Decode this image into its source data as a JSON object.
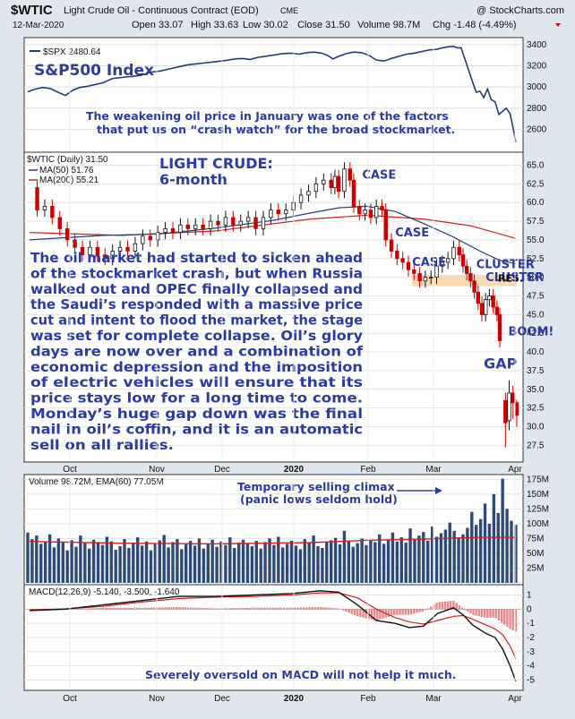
{
  "header": {
    "symbol": "$WTIC",
    "name": "Light Crude Oil - Continuous Contract (EOD)",
    "exchange": "CME",
    "copyright": "@ StockCharts.com",
    "date": "12-Mar-2020",
    "open": "Open 33.07",
    "high": "High 33.63",
    "low": "Low 30.02",
    "close": "Close 31.50",
    "volume": "Volume 98.7M",
    "change": "Chg -1.48 (-4.49%)"
  },
  "colors": {
    "frame_bg": "#dfe6ee",
    "panel_bg": "#ffffff",
    "price_line": "#243b7a",
    "up_candle": "#111111",
    "down_candle": "#cc0000",
    "ma50": "#243b7a",
    "ma200": "#cc2222",
    "annotation": "#2b3ba0",
    "resistance_band": "#f8d9b4",
    "volume_bar": "#2d4a78",
    "volume_ema": "#cc2222",
    "macd_hist": "#e06060"
  },
  "chart_data": [
    {
      "type": "line",
      "panel": "spx",
      "legend": "$SPX 2480.64",
      "title": "S&P500 Index",
      "annotation": "The weakening oil price in January was one of the factors that put us on “crash watch” for the broad stockmarket.",
      "annotation_lines": [
        "The weakening oil price in January was one of the factors",
        "that put us on “crash watch” for the broad stockmarket."
      ],
      "ylim": [
        2400,
        3450
      ],
      "yticks": [
        2600,
        2800,
        3000,
        3200,
        3400
      ],
      "points": [
        [
          0,
          2955
        ],
        [
          8,
          2980
        ],
        [
          16,
          2995
        ],
        [
          24,
          2985
        ],
        [
          32,
          2950
        ],
        [
          40,
          2920
        ],
        [
          48,
          2970
        ],
        [
          55,
          2995
        ],
        [
          62,
          3005
        ],
        [
          70,
          3020
        ],
        [
          80,
          3040
        ],
        [
          90,
          3080
        ],
        [
          100,
          3090
        ],
        [
          110,
          3100
        ],
        [
          120,
          3110
        ],
        [
          130,
          3140
        ],
        [
          140,
          3150
        ],
        [
          150,
          3170
        ],
        [
          160,
          3190
        ],
        [
          170,
          3210
        ],
        [
          180,
          3220
        ],
        [
          190,
          3230
        ],
        [
          200,
          3240
        ],
        [
          210,
          3250
        ],
        [
          220,
          3265
        ],
        [
          228,
          3270
        ],
        [
          236,
          3260
        ],
        [
          244,
          3280
        ],
        [
          252,
          3290
        ],
        [
          260,
          3300
        ],
        [
          270,
          3315
        ],
        [
          280,
          3320
        ],
        [
          288,
          3310
        ],
        [
          296,
          3325
        ],
        [
          304,
          3330
        ],
        [
          312,
          3320
        ],
        [
          318,
          3300
        ],
        [
          324,
          3265
        ],
        [
          330,
          3290
        ],
        [
          338,
          3315
        ],
        [
          346,
          3330
        ],
        [
          354,
          3325
        ],
        [
          362,
          3300
        ],
        [
          370,
          3255
        ],
        [
          378,
          3245
        ],
        [
          386,
          3270
        ],
        [
          394,
          3290
        ],
        [
          402,
          3310
        ],
        [
          410,
          3320
        ],
        [
          418,
          3335
        ],
        [
          426,
          3350
        ],
        [
          434,
          3355
        ],
        [
          440,
          3370
        ],
        [
          446,
          3380
        ],
        [
          452,
          3385
        ],
        [
          456,
          3370
        ],
        [
          460,
          3370
        ],
        [
          463,
          3290
        ],
        [
          466,
          3210
        ],
        [
          469,
          3130
        ],
        [
          472,
          3050
        ],
        [
          476,
          2950
        ],
        [
          480,
          2960
        ],
        [
          484,
          2900
        ],
        [
          488,
          2980
        ],
        [
          492,
          2880
        ],
        [
          496,
          2860
        ],
        [
          500,
          2740
        ],
        [
          504,
          2770
        ],
        [
          508,
          2800
        ],
        [
          512,
          2745
        ],
        [
          515,
          2620
        ],
        [
          518,
          2480
        ]
      ]
    },
    {
      "type": "candlestick",
      "panel": "price",
      "legend": [
        "$WTIC (Daily) 31.50",
        "MA(50) 51.76",
        "MA(200) 55.21"
      ],
      "title": "LIGHT CRUDE: 6-month",
      "title_lines": [
        "LIGHT CRUDE:",
        "6-month"
      ],
      "ylim": [
        25.5,
        66.5
      ],
      "yticks": [
        27.5,
        30.0,
        32.5,
        35.0,
        37.5,
        40.0,
        42.5,
        45.0,
        47.5,
        50.0,
        52.5,
        55.0,
        57.5,
        60.0,
        62.5,
        65.0
      ],
      "ytick_labels": [
        "27.5",
        "30.0",
        "32.5",
        "35.0",
        "37.5",
        "40.0",
        "42.5",
        "45.0",
        "47.5",
        "50.0",
        "52.5",
        "55.0",
        "57.5",
        "60.0",
        "62.5",
        "65.0"
      ],
      "xticks": [
        "Oct",
        "Nov",
        "Dec",
        "2020",
        "Feb",
        "Mar",
        "Apr"
      ],
      "price_path": [
        [
          2,
          62
        ],
        [
          10,
          59
        ],
        [
          18,
          59.5
        ],
        [
          26,
          58
        ],
        [
          34,
          56.5
        ],
        [
          42,
          55
        ],
        [
          50,
          54
        ],
        [
          58,
          53
        ],
        [
          66,
          54
        ],
        [
          74,
          53
        ],
        [
          82,
          52.5
        ],
        [
          90,
          53.5
        ],
        [
          98,
          54
        ],
        [
          106,
          53.5
        ],
        [
          114,
          54.5
        ],
        [
          122,
          55.5
        ],
        [
          130,
          55
        ],
        [
          138,
          56
        ],
        [
          146,
          56.5
        ],
        [
          154,
          56
        ],
        [
          162,
          57
        ],
        [
          170,
          56.5
        ],
        [
          178,
          57
        ],
        [
          186,
          56.5
        ],
        [
          194,
          57.5
        ],
        [
          202,
          57
        ],
        [
          210,
          58
        ],
        [
          218,
          57
        ],
        [
          226,
          57.5
        ],
        [
          234,
          58
        ],
        [
          242,
          56.5
        ],
        [
          250,
          58
        ],
        [
          258,
          59
        ],
        [
          266,
          58.5
        ],
        [
          274,
          59
        ],
        [
          282,
          60
        ],
        [
          290,
          61
        ],
        [
          298,
          61.5
        ],
        [
          306,
          62.5
        ],
        [
          314,
          63
        ],
        [
          322,
          62
        ],
        [
          326,
          63.5
        ],
        [
          330,
          61.5
        ],
        [
          336,
          64.5
        ],
        [
          342,
          63
        ],
        [
          346,
          59.5
        ],
        [
          352,
          58.5
        ],
        [
          358,
          59
        ],
        [
          364,
          58
        ],
        [
          370,
          59.5
        ],
        [
          376,
          59
        ],
        [
          380,
          55
        ],
        [
          386,
          53.5
        ],
        [
          392,
          52.5
        ],
        [
          398,
          52
        ],
        [
          404,
          51
        ],
        [
          410,
          50.5
        ],
        [
          416,
          49.5
        ],
        [
          422,
          50
        ],
        [
          428,
          50
        ],
        [
          434,
          51.5
        ],
        [
          440,
          52
        ],
        [
          446,
          52.5
        ],
        [
          452,
          54
        ],
        [
          458,
          53
        ],
        [
          462,
          51.5
        ],
        [
          466,
          50.5
        ],
        [
          470,
          49.5
        ],
        [
          474,
          48
        ],
        [
          478,
          46.5
        ],
        [
          482,
          45
        ],
        [
          486,
          47
        ],
        [
          490,
          47.5
        ],
        [
          494,
          46
        ],
        [
          498,
          45
        ],
        [
          501,
          41.5
        ]
      ],
      "ma50": [
        [
          2,
          55.0
        ],
        [
          80,
          55.6
        ],
        [
          140,
          55.8
        ],
        [
          200,
          56.6
        ],
        [
          260,
          57.6
        ],
        [
          300,
          58.6
        ],
        [
          330,
          59.3
        ],
        [
          360,
          59.5
        ],
        [
          390,
          58.8
        ],
        [
          420,
          57.2
        ],
        [
          450,
          55.5
        ],
        [
          480,
          53.5
        ],
        [
          500,
          52.3
        ],
        [
          518,
          51.8
        ]
      ],
      "ma200": [
        [
          2,
          56.0
        ],
        [
          100,
          55.6
        ],
        [
          200,
          56.2
        ],
        [
          300,
          57.8
        ],
        [
          360,
          58.3
        ],
        [
          420,
          57.8
        ],
        [
          470,
          56.9
        ],
        [
          518,
          55.2
        ]
      ],
      "resistance": {
        "low": 48.8,
        "high": 50.3,
        "label": "RES."
      },
      "annotations": [
        {
          "text": "CASE",
          "x": 355,
          "y": 63.2
        },
        {
          "text": "CASE",
          "x": 390,
          "y": 55.5
        },
        {
          "text": "CASE",
          "x": 408,
          "y": 51.5
        },
        {
          "text": "CLUSTER",
          "x": 476,
          "y": 51.2
        },
        {
          "text": "CLUSTER",
          "x": 486,
          "y": 49.5
        },
        {
          "text": "BOOM!",
          "x": 510,
          "y": 42.2
        },
        {
          "text": "GAP",
          "x": 484,
          "y": 37.8
        }
      ],
      "gap_candles": [
        [
          507,
          33.5,
          34.5,
          27.2,
          30.5
        ],
        [
          511,
          30.8,
          36.2,
          29.5,
          34.5
        ],
        [
          515,
          34.5,
          35.5,
          31,
          33.2
        ],
        [
          519,
          33.2,
          33.6,
          30.0,
          31.5
        ]
      ],
      "commentary_lines": [
        "The oil market had started to sicken ahead",
        "of the stockmarket crash, but when Russia",
        "walked out and OPEC finally collapsed and",
        "the Saudi’s responded with a massive price",
        "cut and intent to flood the market, the stage",
        "was set for complete collapse. Oil’s glory",
        "days are now over and a combination of",
        "economic depression and the imposition",
        "of electric vehicles will ensure that its",
        "price stays low for a long time to come.",
        "Monday’s huge gap down was the final",
        "nail in oil’s coffin, and it is an automatic",
        "sell on all rallies."
      ]
    },
    {
      "type": "bar",
      "panel": "volume",
      "legend": "Volume 98.72M, EMA(60) 77.05M",
      "annotation_lines": [
        "Temporary selling climax",
        "(panic lows seldom hold)"
      ],
      "ylim": [
        0,
        180
      ],
      "yticks": [
        "25M",
        "50M",
        "75M",
        "100M",
        "125M",
        "150M",
        "175M"
      ],
      "ytick_values": [
        25,
        50,
        75,
        100,
        125,
        150,
        175
      ],
      "values": [
        85,
        74,
        80,
        66,
        70,
        82,
        60,
        75,
        68,
        55,
        72,
        61,
        80,
        67,
        58,
        73,
        69,
        64,
        78,
        70,
        56,
        62,
        74,
        59,
        68,
        77,
        63,
        70,
        55,
        66,
        72,
        81,
        60,
        69,
        74,
        57,
        65,
        71,
        63,
        75,
        58,
        67,
        73,
        61,
        70,
        64,
        77,
        59,
        68,
        73,
        66,
        62,
        71,
        58,
        69,
        75,
        64,
        78,
        60,
        66,
        71,
        63,
        57,
        74,
        68,
        80,
        62,
        59,
        69,
        72,
        76,
        65,
        88,
        70,
        61,
        67,
        75,
        64,
        72,
        69,
        82,
        66,
        73,
        85,
        70,
        77,
        68,
        92,
        74,
        80,
        86,
        71,
        95,
        78,
        84,
        90,
        102,
        88,
        76,
        82,
        93,
        120,
        98,
        108,
        134,
        100,
        150,
        118,
        176,
        125,
        105,
        98
      ],
      "ema": [
        [
          2,
          70
        ],
        [
          100,
          67
        ],
        [
          200,
          66
        ],
        [
          300,
          68
        ],
        [
          360,
          72
        ],
        [
          420,
          74
        ],
        [
          480,
          77
        ],
        [
          518,
          77
        ]
      ]
    },
    {
      "type": "line",
      "panel": "macd",
      "legend": "MACD(12,26,9) -5.140, -3.500, -1.640",
      "annotation": "Severely oversold on MACD will not help it much.",
      "ylim": [
        -5.6,
        1.6
      ],
      "yticks": [
        1,
        0,
        -1,
        -2,
        -3,
        -4,
        -5
      ],
      "macd": [
        [
          2,
          -0.1
        ],
        [
          40,
          0.0
        ],
        [
          80,
          0.3
        ],
        [
          120,
          0.6
        ],
        [
          160,
          0.9
        ],
        [
          200,
          0.9
        ],
        [
          240,
          1.0
        ],
        [
          280,
          1.1
        ],
        [
          310,
          1.3
        ],
        [
          330,
          1.2
        ],
        [
          350,
          0.3
        ],
        [
          370,
          -0.8
        ],
        [
          390,
          -1.0
        ],
        [
          405,
          -1.3
        ],
        [
          420,
          -1.2
        ],
        [
          435,
          -0.3
        ],
        [
          452,
          0.1
        ],
        [
          462,
          -0.4
        ],
        [
          472,
          -1.1
        ],
        [
          486,
          -1.7
        ],
        [
          496,
          -2.0
        ],
        [
          504,
          -2.8
        ],
        [
          512,
          -4.0
        ],
        [
          518,
          -5.1
        ]
      ],
      "signal": [
        [
          2,
          -0.05
        ],
        [
          40,
          0.02
        ],
        [
          80,
          0.2
        ],
        [
          120,
          0.5
        ],
        [
          160,
          0.75
        ],
        [
          200,
          0.85
        ],
        [
          240,
          0.9
        ],
        [
          280,
          1.0
        ],
        [
          310,
          1.15
        ],
        [
          330,
          1.15
        ],
        [
          350,
          0.8
        ],
        [
          370,
          0.0
        ],
        [
          390,
          -0.6
        ],
        [
          405,
          -0.9
        ],
        [
          420,
          -1.05
        ],
        [
          435,
          -0.8
        ],
        [
          452,
          -0.5
        ],
        [
          462,
          -0.45
        ],
        [
          472,
          -0.7
        ],
        [
          486,
          -1.1
        ],
        [
          496,
          -1.4
        ],
        [
          504,
          -1.8
        ],
        [
          512,
          -2.6
        ],
        [
          518,
          -3.5
        ]
      ],
      "histogram_first": {
        "start": 2,
        "end": 518
      }
    }
  ]
}
